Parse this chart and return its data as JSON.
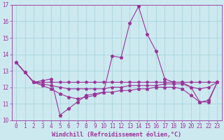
{
  "xlabel": "Windchill (Refroidissement éolien,°C)",
  "background_color": "#cde9f0",
  "grid_color": "#b0d8e0",
  "line_color": "#993399",
  "xlim": [
    -0.5,
    23.5
  ],
  "ylim": [
    10,
    17
  ],
  "xticks": [
    0,
    1,
    2,
    3,
    4,
    5,
    6,
    7,
    8,
    9,
    10,
    11,
    12,
    13,
    14,
    15,
    16,
    17,
    18,
    19,
    20,
    21,
    22,
    23
  ],
  "yticks": [
    10,
    11,
    12,
    13,
    14,
    15,
    16,
    17
  ],
  "series": [
    {
      "x": [
        0,
        1,
        2,
        3,
        4,
        5,
        6,
        7,
        8,
        9,
        10,
        11,
        12,
        13,
        14,
        15,
        16,
        17,
        18,
        19,
        20,
        21,
        22,
        23
      ],
      "y": [
        13.5,
        12.9,
        12.3,
        12.4,
        12.5,
        10.3,
        10.7,
        11.1,
        11.5,
        11.6,
        11.7,
        13.9,
        13.8,
        15.9,
        16.9,
        15.2,
        14.2,
        12.5,
        12.3,
        12.3,
        12.0,
        11.1,
        11.1,
        12.3
      ]
    },
    {
      "x": [
        0,
        1,
        2,
        3,
        4,
        5,
        6,
        7,
        8,
        9,
        10,
        11,
        12,
        13,
        14,
        15,
        16,
        17,
        18,
        19,
        20,
        21,
        22,
        23
      ],
      "y": [
        13.5,
        12.9,
        12.3,
        12.3,
        12.3,
        12.3,
        12.3,
        12.3,
        12.3,
        12.3,
        12.3,
        12.3,
        12.3,
        12.3,
        12.3,
        12.3,
        12.3,
        12.3,
        12.3,
        12.3,
        12.3,
        12.3,
        12.3,
        12.3
      ]
    },
    {
      "x": [
        0,
        1,
        2,
        3,
        4,
        5,
        6,
        7,
        8,
        9,
        10,
        11,
        12,
        13,
        14,
        15,
        16,
        17,
        18,
        19,
        20,
        21,
        22,
        23
      ],
      "y": [
        13.5,
        12.9,
        12.3,
        12.2,
        12.1,
        12.0,
        11.9,
        11.9,
        11.9,
        11.9,
        11.9,
        12.0,
        12.0,
        12.1,
        12.1,
        12.1,
        12.1,
        12.2,
        12.2,
        12.2,
        12.0,
        11.9,
        12.0,
        12.3
      ]
    },
    {
      "x": [
        0,
        1,
        2,
        3,
        4,
        5,
        6,
        7,
        8,
        9,
        10,
        11,
        12,
        13,
        14,
        15,
        16,
        17,
        18,
        19,
        20,
        21,
        22,
        23
      ],
      "y": [
        13.5,
        12.9,
        12.3,
        12.1,
        11.9,
        11.6,
        11.4,
        11.3,
        11.4,
        11.5,
        11.7,
        11.7,
        11.8,
        11.8,
        11.9,
        11.9,
        12.0,
        12.0,
        12.0,
        11.9,
        11.5,
        11.1,
        11.2,
        12.3
      ]
    }
  ],
  "font_color": "#993399",
  "tick_fontsize": 5.5,
  "label_fontsize": 6.0
}
